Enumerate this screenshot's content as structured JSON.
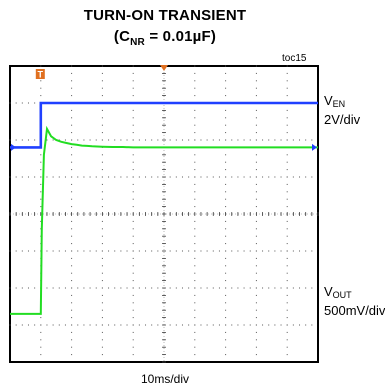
{
  "title_line1": "TURN-ON TRANSIENT",
  "title_line2_prefix": "(C",
  "title_line2_sub": "NR",
  "title_line2_suffix": " = 0.01µF)",
  "figure_id": "toc15",
  "channels": {
    "ven": {
      "name": "V",
      "sub": "EN",
      "scale": "2V/div",
      "color": "#2040ff"
    },
    "vout": {
      "name": "V",
      "sub": "OUT",
      "scale": "500mV/div",
      "color": "#22dd22"
    }
  },
  "x_scale_label": "10ms/div",
  "trigger_marker": "T",
  "chart_data": {
    "type": "line",
    "x_unit": "div",
    "x_range": [
      -3,
      27
    ],
    "y_range_div": [
      -4,
      4
    ],
    "grid": {
      "x_divisions": 10,
      "y_divisions": 8,
      "minor_ticks": 5
    },
    "series": [
      {
        "name": "VEN",
        "x": [
          -3.0,
          0.0,
          0.0,
          0.1,
          27.0
        ],
        "y": [
          1.8,
          1.8,
          3.0,
          3.0,
          3.0
        ]
      },
      {
        "name": "VOUT",
        "x": [
          -3.0,
          0.0,
          0.1,
          0.3,
          0.6,
          1.0,
          1.5,
          2.0,
          2.5,
          3.0,
          3.5,
          4.0,
          4.5,
          5.0,
          6.0,
          7.0,
          8.0,
          9.0,
          10.0,
          12.0,
          14.0,
          17.0,
          20.0,
          27.0
        ],
        "y": [
          -2.7,
          -2.7,
          -0.4,
          1.6,
          2.3,
          2.1,
          2.0,
          1.95,
          1.92,
          1.89,
          1.87,
          1.85,
          1.84,
          1.83,
          1.82,
          1.81,
          1.81,
          1.8,
          1.8,
          1.8,
          1.8,
          1.8,
          1.8,
          1.8
        ]
      }
    ]
  }
}
